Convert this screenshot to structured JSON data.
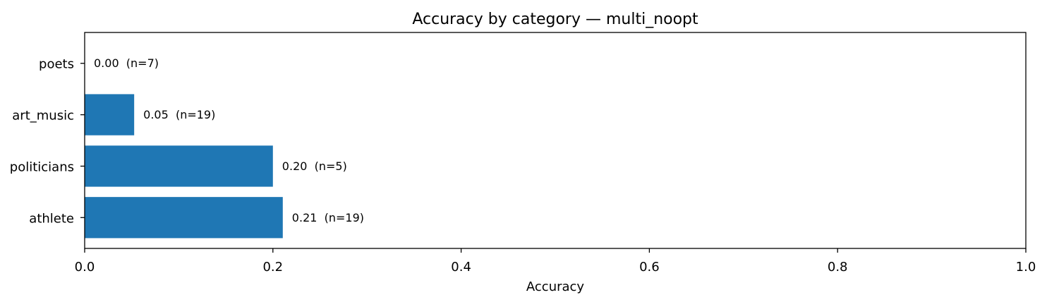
{
  "chart_data": {
    "type": "bar",
    "orientation": "horizontal",
    "title": "Accuracy by category — multi_noopt",
    "xlabel": "Accuracy",
    "ylabel": "",
    "xlim": [
      0,
      1
    ],
    "xticks": [
      0.0,
      0.2,
      0.4,
      0.6,
      0.8,
      1.0
    ],
    "xtick_labels": [
      "0.0",
      "0.2",
      "0.4",
      "0.6",
      "0.8",
      "1.0"
    ],
    "categories": [
      "athlete",
      "politicians",
      "art_music",
      "poets"
    ],
    "values": [
      0.2105,
      0.2,
      0.0526,
      0.0
    ],
    "n": [
      19,
      5,
      19,
      7
    ],
    "data_labels": [
      "0.21  (n=19)",
      "0.20  (n=5)",
      "0.05  (n=19)",
      "0.00  (n=7)"
    ],
    "bar_color": "#1f77b4",
    "grid": false,
    "legend": "none"
  }
}
